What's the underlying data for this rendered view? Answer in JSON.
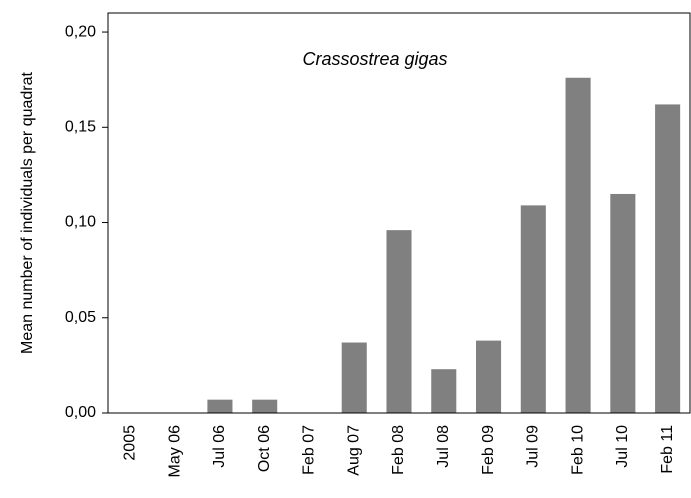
{
  "chart_data": {
    "type": "bar",
    "y_label": "Mean number of individuals per quadrat",
    "annotation": "Crassostrea gigas",
    "categories": [
      "2005",
      "May 06",
      "Jul 06",
      "Oct 06",
      "Feb 07",
      "Aug 07",
      "Feb 08",
      "Jul 08",
      "Feb 09",
      "Jul 09",
      "Feb 10",
      "Jul 10",
      "Feb 11"
    ],
    "values": [
      0,
      0,
      0.007,
      0.007,
      0,
      0.037,
      0.096,
      0.023,
      0.038,
      0.109,
      0.176,
      0.115,
      0.162
    ],
    "color": "#808080",
    "ylim": [
      0,
      0.21
    ],
    "yticks": [
      {
        "value": 0,
        "label": "0,00"
      },
      {
        "value": 0.05,
        "label": "0,05"
      },
      {
        "value": 0.1,
        "label": "0,10"
      },
      {
        "value": 0.15,
        "label": "0,15"
      },
      {
        "value": 0.2,
        "label": "0,20"
      }
    ],
    "grid": false
  }
}
